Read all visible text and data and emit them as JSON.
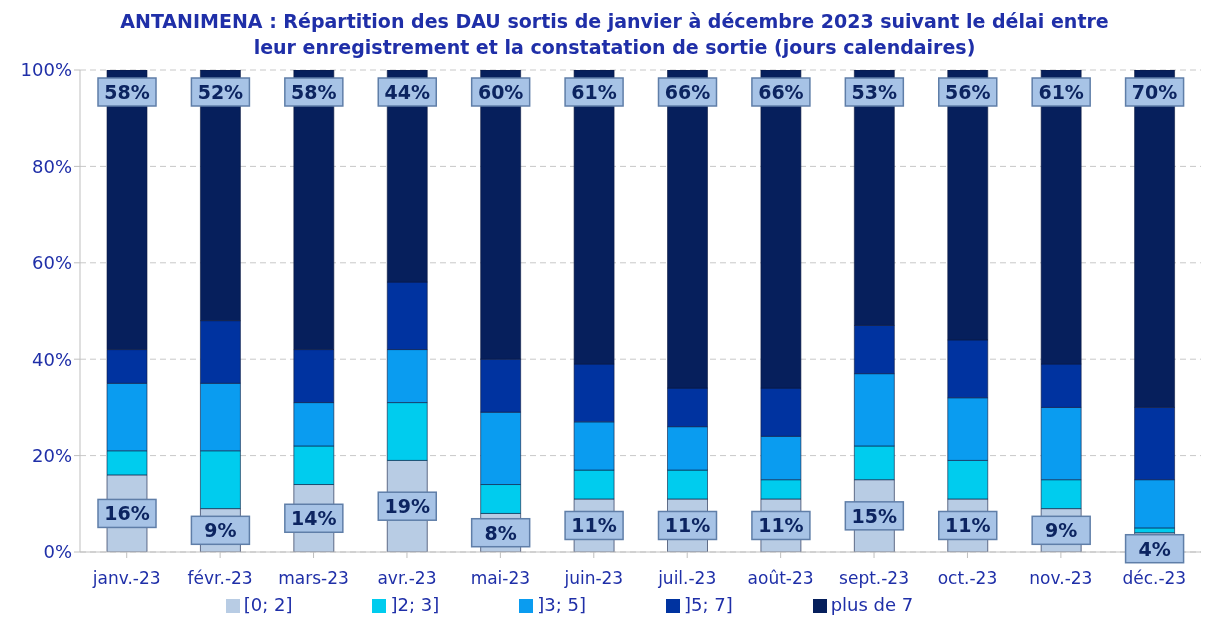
{
  "chart_data": {
    "type": "bar",
    "stacked": true,
    "title": "ANTANIMENA : Répartition des DAU sortis de janvier à décembre 2023 suivant le délai entre leur enregistrement et la constatation de sortie (jours calendaires)",
    "categories": [
      "janv.-23",
      "févr.-23",
      "mars-23",
      "avr.-23",
      "mai-23",
      "juin-23",
      "juil.-23",
      "août-23",
      "sept.-23",
      "oct.-23",
      "nov.-23",
      "déc.-23"
    ],
    "series": [
      {
        "name": "[0; 2]",
        "color": "#b8cce4",
        "values": [
          16,
          9,
          14,
          19,
          8,
          11,
          11,
          11,
          15,
          11,
          9,
          4
        ],
        "value_labels": [
          "16%",
          "9%",
          "14%",
          "19%",
          "8%",
          "11%",
          "11%",
          "11%",
          "15%",
          "11%",
          "9%",
          "4%"
        ]
      },
      {
        "name": "]2; 3]",
        "color": "#00ccee",
        "values": [
          5,
          12,
          8,
          12,
          6,
          6,
          6,
          4,
          7,
          8,
          6,
          1
        ]
      },
      {
        "name": "]3; 5]",
        "color": "#0a9cf0",
        "values": [
          14,
          14,
          9,
          11,
          15,
          10,
          9,
          9,
          15,
          13,
          15,
          10
        ]
      },
      {
        "name": "]5; 7]",
        "color": "#0033a0",
        "values": [
          7,
          13,
          11,
          14,
          11,
          12,
          8,
          10,
          10,
          12,
          9,
          15
        ]
      },
      {
        "name": "plus de 7",
        "color": "#061f5c",
        "values": [
          58,
          52,
          58,
          44,
          60,
          61,
          66,
          66,
          53,
          56,
          61,
          70
        ],
        "value_labels": [
          "58%",
          "52%",
          "58%",
          "44%",
          "60%",
          "61%",
          "66%",
          "66%",
          "53%",
          "56%",
          "61%",
          "70%"
        ]
      }
    ],
    "ylim": [
      0,
      100
    ],
    "yticks": [
      {
        "value": 0,
        "label": "0%"
      },
      {
        "value": 20,
        "label": "20%"
      },
      {
        "value": 40,
        "label": "40%"
      },
      {
        "value": 60,
        "label": "60%"
      },
      {
        "value": 80,
        "label": "80%"
      },
      {
        "value": 100,
        "label": "100%"
      }
    ],
    "grid": "y",
    "legend": "bottom"
  }
}
